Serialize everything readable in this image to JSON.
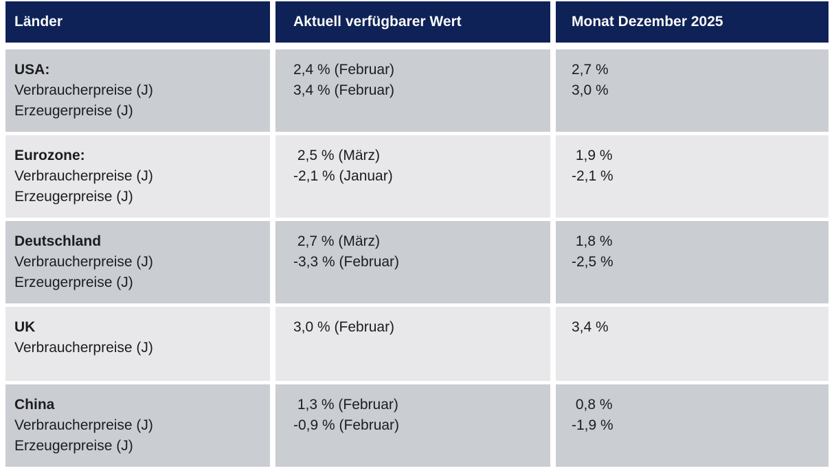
{
  "table": {
    "columns": [
      {
        "label": "Länder"
      },
      {
        "label": "Aktuell verfügbarer Wert"
      },
      {
        "label": "Monat Dezember 2025"
      }
    ],
    "rows": [
      {
        "country": "USA:",
        "metrics": [
          "Verbraucherpreise (J)",
          "Erzeugerpreise (J)"
        ],
        "current": [
          "2,4 % (Februar)",
          "3,4 % (Februar)"
        ],
        "monat": [
          "2,7 %",
          "3,0 %"
        ],
        "shade": "dark"
      },
      {
        "country": "Eurozone:",
        "metrics": [
          "Verbraucherpreise (J)",
          "Erzeugerpreise (J)"
        ],
        "current": [
          " 2,5 % (März)",
          "-2,1 % (Januar)"
        ],
        "monat": [
          " 1,9 %",
          "-2,1 %"
        ],
        "shade": "light"
      },
      {
        "country": "Deutschland",
        "metrics": [
          "Verbraucherpreise (J)",
          "Erzeugerpreise (J)"
        ],
        "current": [
          " 2,7 % (März)",
          "-3,3 % (Februar)"
        ],
        "monat": [
          " 1,8 %",
          "-2,5 %"
        ],
        "shade": "dark"
      },
      {
        "country": "UK",
        "metrics": [
          "Verbraucherpreise (J)"
        ],
        "current": [
          "3,0 % (Februar)"
        ],
        "monat": [
          "3,4 %"
        ],
        "shade": "light"
      },
      {
        "country": "China",
        "metrics": [
          "Verbraucherpreise (J)",
          "Erzeugerpreise (J)"
        ],
        "current": [
          " 1,3 % (Februar)",
          "-0,9 % (Februar)"
        ],
        "monat": [
          " 0,8 %",
          "-1,9 %"
        ],
        "shade": "dark"
      }
    ]
  },
  "chart_data": {
    "type": "table",
    "columns": [
      "Länder",
      "Aktuell verfügbarer Wert",
      "Monat Dezember 2025"
    ],
    "rows": [
      {
        "country": "USA",
        "indicator": "Verbraucherpreise (J)",
        "aktuell_pct": 2.4,
        "aktuell_monat": "Februar",
        "dezember_2025_pct": 2.7
      },
      {
        "country": "USA",
        "indicator": "Erzeugerpreise (J)",
        "aktuell_pct": 3.4,
        "aktuell_monat": "Februar",
        "dezember_2025_pct": 3.0
      },
      {
        "country": "Eurozone",
        "indicator": "Verbraucherpreise (J)",
        "aktuell_pct": 2.5,
        "aktuell_monat": "März",
        "dezember_2025_pct": 1.9
      },
      {
        "country": "Eurozone",
        "indicator": "Erzeugerpreise (J)",
        "aktuell_pct": -2.1,
        "aktuell_monat": "Januar",
        "dezember_2025_pct": -2.1
      },
      {
        "country": "Deutschland",
        "indicator": "Verbraucherpreise (J)",
        "aktuell_pct": 2.7,
        "aktuell_monat": "März",
        "dezember_2025_pct": 1.8
      },
      {
        "country": "Deutschland",
        "indicator": "Erzeugerpreise (J)",
        "aktuell_pct": -3.3,
        "aktuell_monat": "Februar",
        "dezember_2025_pct": -2.5
      },
      {
        "country": "UK",
        "indicator": "Verbraucherpreise (J)",
        "aktuell_pct": 3.0,
        "aktuell_monat": "Februar",
        "dezember_2025_pct": 3.4
      },
      {
        "country": "China",
        "indicator": "Verbraucherpreise (J)",
        "aktuell_pct": 1.3,
        "aktuell_monat": "Februar",
        "dezember_2025_pct": 0.8
      },
      {
        "country": "China",
        "indicator": "Erzeugerpreise (J)",
        "aktuell_pct": -0.9,
        "aktuell_monat": "Februar",
        "dezember_2025_pct": -1.9
      }
    ]
  },
  "colors": {
    "header_bg": "#0e2257",
    "header_text": "#fafafa",
    "row_dark": "#cacdd2",
    "row_light": "#e8e8ea",
    "body_text": "#1c1c1e"
  }
}
